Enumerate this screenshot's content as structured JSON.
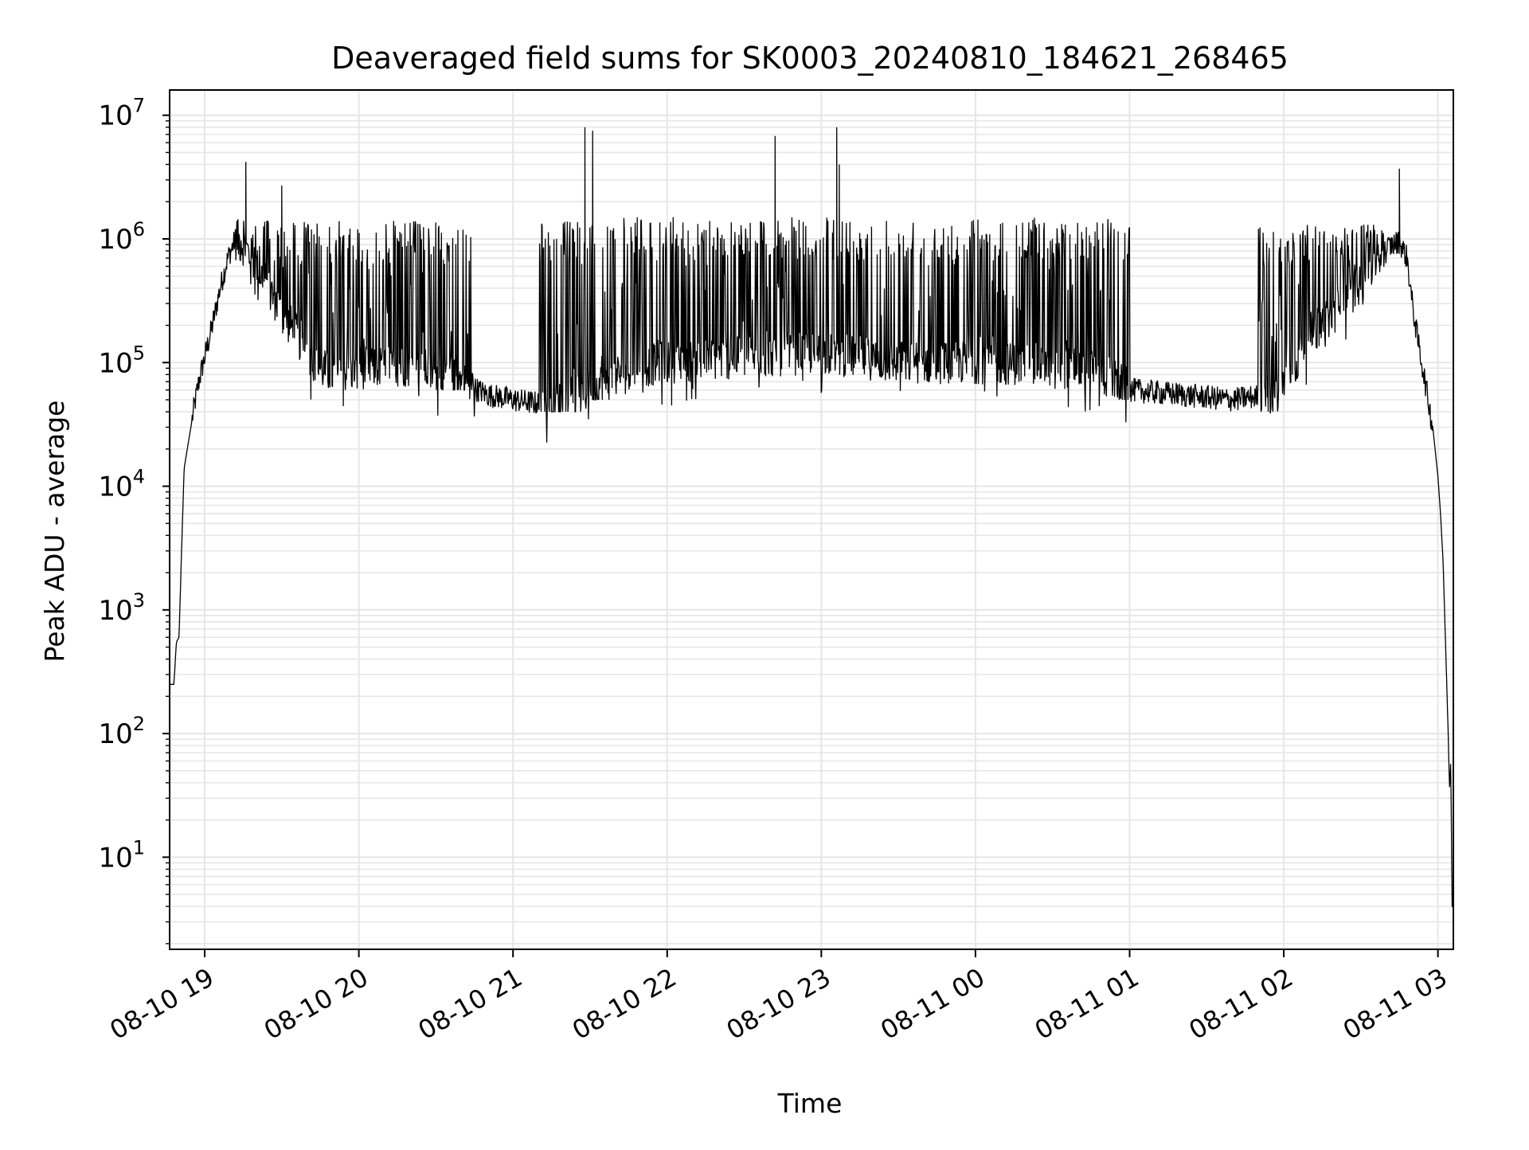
{
  "chart_data": {
    "type": "line",
    "title": "Deaveraged field sums for SK0003_20240810_184621_268465",
    "xlabel": "Time",
    "ylabel": "Peak ADU - average",
    "x_axis": {
      "kind": "datetime",
      "range": [
        "2024-08-10T18:46:21",
        "2024-08-11T03:06:00"
      ],
      "ticks": [
        {
          "label": "08-10 19",
          "time": "2024-08-10T19:00:00"
        },
        {
          "label": "08-10 20",
          "time": "2024-08-10T20:00:00"
        },
        {
          "label": "08-10 21",
          "time": "2024-08-10T21:00:00"
        },
        {
          "label": "08-10 22",
          "time": "2024-08-10T22:00:00"
        },
        {
          "label": "08-10 23",
          "time": "2024-08-10T23:00:00"
        },
        {
          "label": "08-11 00",
          "time": "2024-08-11T00:00:00"
        },
        {
          "label": "08-11 01",
          "time": "2024-08-11T01:00:00"
        },
        {
          "label": "08-11 02",
          "time": "2024-08-11T02:00:00"
        },
        {
          "label": "08-11 03",
          "time": "2024-08-11T03:00:00"
        }
      ],
      "tick_label_rotation": 30
    },
    "y_axis": {
      "scale": "log",
      "range": [
        1.8,
        16000000
      ],
      "ticks": [
        {
          "base": "10",
          "exp": "1",
          "value": 10
        },
        {
          "base": "10",
          "exp": "2",
          "value": 100
        },
        {
          "base": "10",
          "exp": "3",
          "value": 1000
        },
        {
          "base": "10",
          "exp": "4",
          "value": 10000
        },
        {
          "base": "10",
          "exp": "5",
          "value": 100000
        },
        {
          "base": "10",
          "exp": "6",
          "value": 1000000
        },
        {
          "base": "10",
          "exp": "7",
          "value": 10000000
        }
      ]
    },
    "grid": {
      "major": true,
      "minor_y": true,
      "color": "#e6e6e6"
    },
    "line_color": "#000000",
    "series": [
      {
        "points": [
          [
            "2024-08-10T18:46:21",
            250
          ],
          [
            "2024-08-10T18:48:00",
            250
          ],
          [
            "2024-08-10T18:49:00",
            550
          ],
          [
            "2024-08-10T18:50:00",
            600
          ],
          [
            "2024-08-10T18:51:00",
            3000
          ],
          [
            "2024-08-10T18:52:00",
            14000
          ],
          [
            "2024-08-10T18:54:00",
            25000
          ],
          [
            "2024-08-10T18:56:00",
            45000
          ],
          [
            "2024-08-10T18:58:00",
            75000
          ],
          [
            "2024-08-10T19:00:00",
            110000
          ],
          [
            "2024-08-10T19:03:00",
            200000
          ],
          [
            "2024-08-10T19:06:00",
            400000
          ],
          [
            "2024-08-10T19:09:00",
            700000
          ],
          [
            "2024-08-10T19:12:00",
            1000000
          ],
          [
            "2024-08-10T19:15:00",
            900000
          ],
          [
            "2024-08-10T19:20:00",
            600000
          ],
          [
            "2024-08-10T19:25:00",
            400000
          ],
          [
            "2024-08-10T19:30:00",
            250000
          ],
          [
            "2024-08-10T19:35:00",
            180000
          ],
          [
            "2024-08-10T19:40:00",
            120000
          ],
          [
            "2024-08-10T19:45:00",
            90000
          ],
          [
            "2024-08-10T19:50:00",
            80000
          ],
          [
            "2024-08-10T20:00:00",
            90000
          ],
          [
            "2024-08-10T20:20:00",
            95000
          ],
          [
            "2024-08-10T20:40:00",
            70000
          ],
          [
            "2024-08-10T20:50:00",
            55000
          ],
          [
            "2024-08-10T21:00:00",
            50000
          ],
          [
            "2024-08-10T21:15:00",
            45000
          ],
          [
            "2024-08-10T21:30:00",
            60000
          ],
          [
            "2024-08-10T21:45:00",
            90000
          ],
          [
            "2024-08-10T22:00:00",
            100000
          ],
          [
            "2024-08-10T22:30:00",
            110000
          ],
          [
            "2024-08-10T23:00:00",
            120000
          ],
          [
            "2024-08-10T23:30:00",
            100000
          ],
          [
            "2024-08-11T00:00:00",
            100000
          ],
          [
            "2024-08-11T00:30:00",
            95000
          ],
          [
            "2024-08-11T00:50:00",
            80000
          ],
          [
            "2024-08-11T01:00:00",
            60000
          ],
          [
            "2024-08-11T01:20:00",
            55000
          ],
          [
            "2024-08-11T01:40:00",
            50000
          ],
          [
            "2024-08-11T01:55:00",
            55000
          ],
          [
            "2024-08-11T02:05:00",
            100000
          ],
          [
            "2024-08-11T02:10:00",
            170000
          ],
          [
            "2024-08-11T02:20:00",
            250000
          ],
          [
            "2024-08-11T02:30:00",
            450000
          ],
          [
            "2024-08-11T02:40:00",
            850000
          ],
          [
            "2024-08-11T02:45:00",
            950000
          ],
          [
            "2024-08-11T02:48:00",
            700000
          ],
          [
            "2024-08-11T02:50:00",
            300000
          ],
          [
            "2024-08-11T02:52:00",
            160000
          ],
          [
            "2024-08-11T02:55:00",
            70000
          ],
          [
            "2024-08-11T02:58:00",
            30000
          ],
          [
            "2024-08-11T03:00:00",
            12000
          ],
          [
            "2024-08-11T03:01:00",
            6000
          ],
          [
            "2024-08-11T03:02:00",
            2500
          ],
          [
            "2024-08-11T03:03:00",
            500
          ],
          [
            "2024-08-11T03:04:00",
            100
          ],
          [
            "2024-08-11T03:04:30",
            35
          ],
          [
            "2024-08-11T03:05:00",
            60
          ],
          [
            "2024-08-11T03:05:30",
            4
          ]
        ],
        "noise_bands": [
          {
            "start": "2024-08-10T19:12:00",
            "end": "2024-08-10T20:45:00",
            "low": 60000,
            "high": 1400000
          },
          {
            "start": "2024-08-10T21:10:00",
            "end": "2024-08-10T21:30:00",
            "low": 40000,
            "high": 1400000
          },
          {
            "start": "2024-08-10T21:30:00",
            "end": "2024-08-11T01:00:00",
            "low": 50000,
            "high": 1500000
          },
          {
            "start": "2024-08-11T01:50:00",
            "end": "2024-08-11T02:40:00",
            "low": 40000,
            "high": 1300000
          }
        ],
        "spikes": [
          {
            "time": "2024-08-10T19:16:00",
            "value": 4200000
          },
          {
            "time": "2024-08-10T19:30:00",
            "value": 2700000
          },
          {
            "time": "2024-08-10T21:28:00",
            "value": 8000000
          },
          {
            "time": "2024-08-10T21:31:00",
            "value": 7500000
          },
          {
            "time": "2024-08-10T22:42:00",
            "value": 6800000
          },
          {
            "time": "2024-08-10T23:06:00",
            "value": 8000000
          },
          {
            "time": "2024-08-10T23:07:00",
            "value": 4000000
          },
          {
            "time": "2024-08-11T02:45:00",
            "value": 3700000
          }
        ]
      }
    ]
  }
}
